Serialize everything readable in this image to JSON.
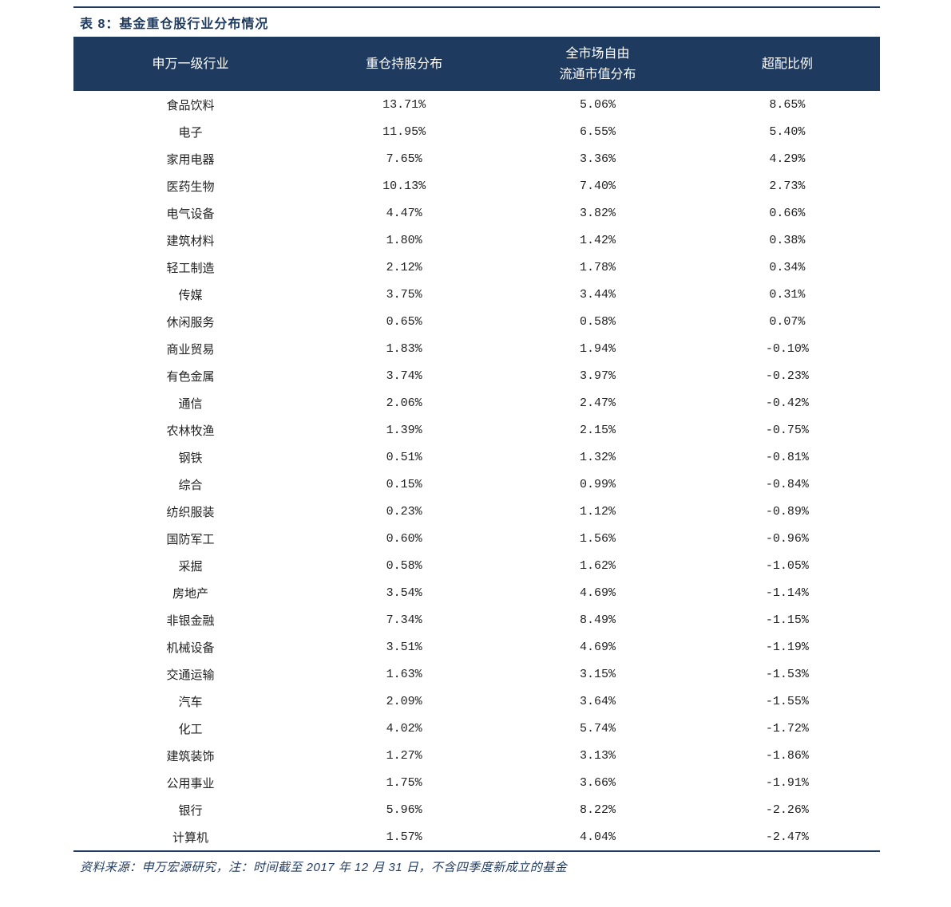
{
  "title": "表 8：基金重仓股行业分布情况",
  "colors": {
    "header_bg": "#1f3a5f",
    "header_text": "#ffffff",
    "accent": "#1f3a5f",
    "body_text": "#222222",
    "background": "#ffffff"
  },
  "table": {
    "columns": [
      {
        "key": "industry",
        "label": "申万一级行业",
        "width": "29%",
        "align": "center"
      },
      {
        "key": "holding",
        "label": "重仓持股分布",
        "width": "24%",
        "align": "center"
      },
      {
        "key": "market",
        "label_line1": "全市场自由",
        "label_line2": "流通市值分布",
        "width": "24%",
        "align": "center"
      },
      {
        "key": "over",
        "label": "超配比例",
        "width": "23%",
        "align": "center"
      }
    ],
    "rows": [
      {
        "industry": "食品饮料",
        "holding": "13.71%",
        "market": "5.06%",
        "over": "8.65%"
      },
      {
        "industry": "电子",
        "holding": "11.95%",
        "market": "6.55%",
        "over": "5.40%"
      },
      {
        "industry": "家用电器",
        "holding": "7.65%",
        "market": "3.36%",
        "over": "4.29%"
      },
      {
        "industry": "医药生物",
        "holding": "10.13%",
        "market": "7.40%",
        "over": "2.73%"
      },
      {
        "industry": "电气设备",
        "holding": "4.47%",
        "market": "3.82%",
        "over": "0.66%"
      },
      {
        "industry": "建筑材料",
        "holding": "1.80%",
        "market": "1.42%",
        "over": "0.38%"
      },
      {
        "industry": "轻工制造",
        "holding": "2.12%",
        "market": "1.78%",
        "over": "0.34%"
      },
      {
        "industry": "传媒",
        "holding": "3.75%",
        "market": "3.44%",
        "over": "0.31%"
      },
      {
        "industry": "休闲服务",
        "holding": "0.65%",
        "market": "0.58%",
        "over": "0.07%"
      },
      {
        "industry": "商业贸易",
        "holding": "1.83%",
        "market": "1.94%",
        "over": "-0.10%"
      },
      {
        "industry": "有色金属",
        "holding": "3.74%",
        "market": "3.97%",
        "over": "-0.23%"
      },
      {
        "industry": "通信",
        "holding": "2.06%",
        "market": "2.47%",
        "over": "-0.42%"
      },
      {
        "industry": "农林牧渔",
        "holding": "1.39%",
        "market": "2.15%",
        "over": "-0.75%"
      },
      {
        "industry": "钢铁",
        "holding": "0.51%",
        "market": "1.32%",
        "over": "-0.81%"
      },
      {
        "industry": "综合",
        "holding": "0.15%",
        "market": "0.99%",
        "over": "-0.84%"
      },
      {
        "industry": "纺织服装",
        "holding": "0.23%",
        "market": "1.12%",
        "over": "-0.89%"
      },
      {
        "industry": "国防军工",
        "holding": "0.60%",
        "market": "1.56%",
        "over": "-0.96%"
      },
      {
        "industry": "采掘",
        "holding": "0.58%",
        "market": "1.62%",
        "over": "-1.05%"
      },
      {
        "industry": "房地产",
        "holding": "3.54%",
        "market": "4.69%",
        "over": "-1.14%"
      },
      {
        "industry": "非银金融",
        "holding": "7.34%",
        "market": "8.49%",
        "over": "-1.15%"
      },
      {
        "industry": "机械设备",
        "holding": "3.51%",
        "market": "4.69%",
        "over": "-1.19%"
      },
      {
        "industry": "交通运输",
        "holding": "1.63%",
        "market": "3.15%",
        "over": "-1.53%"
      },
      {
        "industry": "汽车",
        "holding": "2.09%",
        "market": "3.64%",
        "over": "-1.55%"
      },
      {
        "industry": "化工",
        "holding": "4.02%",
        "market": "5.74%",
        "over": "-1.72%"
      },
      {
        "industry": "建筑装饰",
        "holding": "1.27%",
        "market": "3.13%",
        "over": "-1.86%"
      },
      {
        "industry": "公用事业",
        "holding": "1.75%",
        "market": "3.66%",
        "over": "-1.91%"
      },
      {
        "industry": "银行",
        "holding": "5.96%",
        "market": "8.22%",
        "over": "-2.26%"
      },
      {
        "industry": "计算机",
        "holding": "1.57%",
        "market": "4.04%",
        "over": "-2.47%"
      }
    ]
  },
  "footer": "资料来源：申万宏源研究，注：时间截至 2017 年 12 月 31 日，不含四季度新成立的基金",
  "typography": {
    "title_fontsize": 16,
    "header_fontsize": 16,
    "cell_fontsize": 15,
    "footer_fontsize": 15
  }
}
